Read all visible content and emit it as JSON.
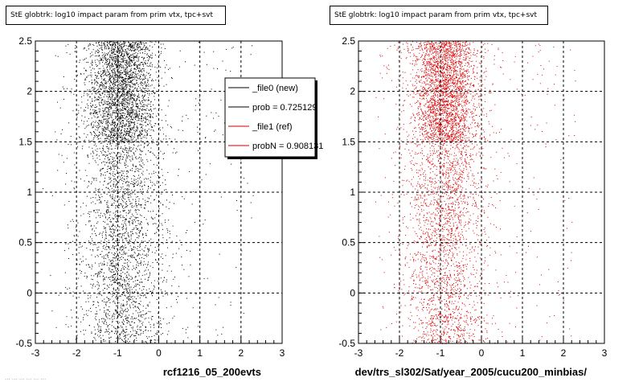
{
  "chart_data": [
    {
      "type": "scatter",
      "title": "StE globtrk: log10 impact param from prim vtx, tpc+svt",
      "xlabel": "rcf1216_05_200evts",
      "ylabel": "",
      "xlim": [
        -3,
        3
      ],
      "ylim": [
        -0.5,
        2.5
      ],
      "xticks": [
        "-3",
        "-2",
        "-1",
        "0",
        "1",
        "2",
        "3"
      ],
      "yticks": [
        "-0.5",
        "0",
        "0.5",
        "1",
        "1.5",
        "2",
        "2.5"
      ],
      "grid": true,
      "point_color": "#000000",
      "legend_position": "top-right",
      "legend": [
        {
          "label": "_file0 (new)",
          "color": "#000000"
        },
        {
          "label": "prob = 0.725129",
          "color": "#000000"
        },
        {
          "label": "_file1 (ref)",
          "color": "#cc0000"
        },
        {
          "label": "probN = 0.908131",
          "color": "#cc0000"
        }
      ],
      "distribution": {
        "x_center": -0.9,
        "x_spread": 0.55,
        "y_min": -0.5,
        "y_max": 2.5,
        "dense_y_band": [
          1.5,
          2.5
        ]
      }
    },
    {
      "type": "scatter",
      "title": "StE globtrk: log10 impact param from prim vtx, tpc+svt",
      "xlabel": "dev/trs_sl302/Sat/year_2005/cucu200_minbias/",
      "ylabel": "",
      "xlim": [
        -3,
        3
      ],
      "ylim": [
        -0.5,
        2.5
      ],
      "xticks": [
        "-3",
        "-2",
        "-1",
        "0",
        "1",
        "2",
        "3"
      ],
      "yticks": [
        "-0.5",
        "0",
        "0.5",
        "1",
        "1.5",
        "2",
        "2.5"
      ],
      "grid": true,
      "point_color": "#dd0000",
      "distribution": {
        "x_center": -0.9,
        "x_spread": 0.55,
        "y_min": -0.5,
        "y_max": 2.5,
        "dense_y_band": [
          1.5,
          2.5
        ]
      }
    }
  ],
  "footer": "... ... ... ... ... ..."
}
